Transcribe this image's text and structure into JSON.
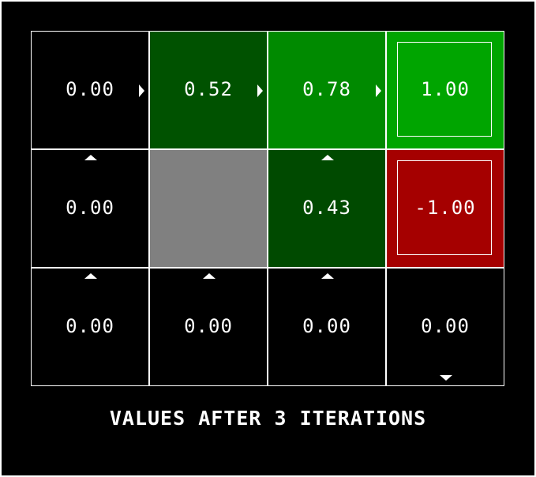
{
  "caption": "VALUES AFTER 3 ITERATIONS",
  "colors": {
    "background": "#000000",
    "grid_line": "#ffffff",
    "wall": "#808080",
    "dark_green": "#005200",
    "medium_green": "#008A00",
    "bright_green": "#00A500",
    "red": "#A50000",
    "text": "#ffffff"
  },
  "grid": {
    "rows": 3,
    "cols": 4,
    "cells": [
      {
        "row": 0,
        "col": 0,
        "value": "0.00",
        "color": "#000000",
        "arrow": "east"
      },
      {
        "row": 0,
        "col": 1,
        "value": "0.52",
        "color": "#005200",
        "arrow": "east"
      },
      {
        "row": 0,
        "col": 2,
        "value": "0.78",
        "color": "#008A00",
        "arrow": "east"
      },
      {
        "row": 0,
        "col": 3,
        "value": "1.00",
        "color": "#00A500",
        "terminal": true
      },
      {
        "row": 1,
        "col": 0,
        "value": "0.00",
        "color": "#000000",
        "arrow": "north"
      },
      {
        "row": 1,
        "col": 1,
        "wall": true,
        "color": "#808080"
      },
      {
        "row": 1,
        "col": 2,
        "value": "0.43",
        "color": "#004A00",
        "arrow": "north"
      },
      {
        "row": 1,
        "col": 3,
        "value": "-1.00",
        "color": "#A50000",
        "terminal": true
      },
      {
        "row": 2,
        "col": 0,
        "value": "0.00",
        "color": "#000000",
        "arrow": "north"
      },
      {
        "row": 2,
        "col": 1,
        "value": "0.00",
        "color": "#000000",
        "arrow": "north"
      },
      {
        "row": 2,
        "col": 2,
        "value": "0.00",
        "color": "#000000",
        "arrow": "north"
      },
      {
        "row": 2,
        "col": 3,
        "value": "0.00",
        "color": "#000000",
        "arrow": "south"
      }
    ]
  }
}
